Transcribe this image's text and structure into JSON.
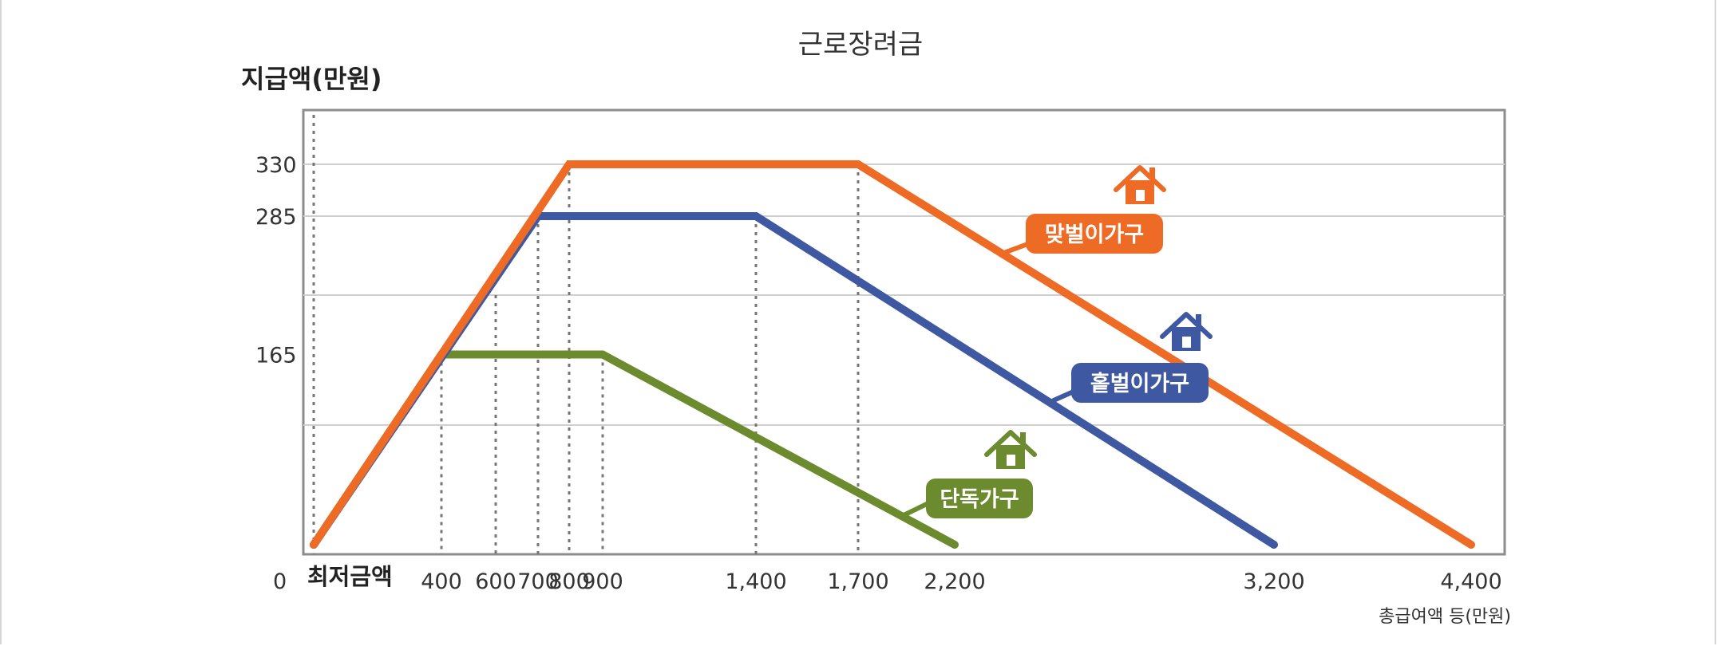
{
  "page": {
    "title": "근로장려금"
  },
  "chart_data": {
    "type": "line",
    "title": "근로장려금",
    "ylabel": "지급액(만원)",
    "xlabel": "총급여액 등(만원)",
    "x_min_label": "최저금액",
    "x_ticks": [
      {
        "v": 0,
        "label": "0"
      },
      {
        "v": 400,
        "label": "400"
      },
      {
        "v": 600,
        "label": "600"
      },
      {
        "v": 700,
        "label": "700"
      },
      {
        "v": 800,
        "label": "800"
      },
      {
        "v": 900,
        "label": "900"
      },
      {
        "v": 1400,
        "label": "1,400"
      },
      {
        "v": 1700,
        "label": "1,700"
      },
      {
        "v": 2200,
        "label": "2,200"
      },
      {
        "v": 3200,
        "label": "3,200"
      },
      {
        "v": 4400,
        "label": "4,400"
      }
    ],
    "y_ticks": [
      {
        "v": 330,
        "label": "330"
      },
      {
        "v": 285,
        "label": "285"
      },
      {
        "v": 165,
        "label": "165"
      }
    ],
    "ylim": [
      0,
      375
    ],
    "grid": true,
    "series": [
      {
        "name": "맞벌이가구",
        "color": "#ee6b25",
        "points": [
          [
            0,
            0
          ],
          [
            800,
            330
          ],
          [
            1700,
            330
          ],
          [
            4400,
            0
          ]
        ]
      },
      {
        "name": "홑벌이가구",
        "color": "#3e58a2",
        "points": [
          [
            0,
            0
          ],
          [
            700,
            285
          ],
          [
            1400,
            285
          ],
          [
            3200,
            0
          ]
        ]
      },
      {
        "name": "단독가구",
        "color": "#6c8b2e",
        "points": [
          [
            0,
            0
          ],
          [
            400,
            165
          ],
          [
            900,
            165
          ],
          [
            2200,
            0
          ]
        ]
      }
    ]
  }
}
